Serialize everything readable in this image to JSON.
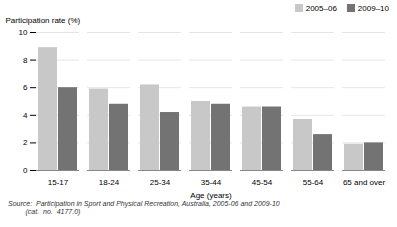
{
  "chart_data": {
    "type": "bar",
    "categories": [
      "15-17",
      "18-24",
      "25-34",
      "35-44",
      "45-54",
      "55-64",
      "65 and over"
    ],
    "series": [
      {
        "name": "2005–06",
        "color": "#c8c8c8",
        "values": [
          8.9,
          5.9,
          6.2,
          5.0,
          4.6,
          3.7,
          1.9
        ]
      },
      {
        "name": "2009–10",
        "color": "#737373",
        "values": [
          6.0,
          4.8,
          4.2,
          4.8,
          4.6,
          2.6,
          2.0
        ]
      }
    ],
    "xlabel": "Age (years)",
    "ylabel": "Participation rate (%)",
    "ylim": [
      0,
      10
    ],
    "yticks": [
      0,
      2,
      4,
      6,
      8,
      10
    ],
    "grid": true,
    "legend": "upper right",
    "annotations": [
      "Source:  Participation in Sport and Physical Recreation, Australia, 2005-06 and 2009-10",
      "         (cat.  no.  4177.0)"
    ]
  }
}
